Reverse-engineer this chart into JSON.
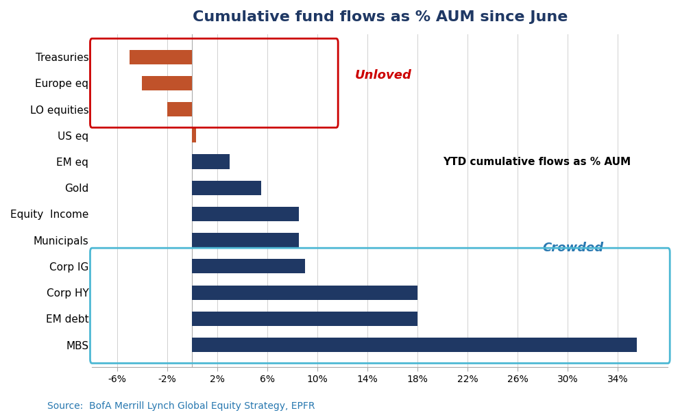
{
  "title": "Cumulative fund flows as % AUM since June",
  "title_color": "#1f3864",
  "categories": [
    "MBS",
    "EM debt",
    "Corp HY",
    "Corp IG",
    "Municipals",
    "Equity  Income",
    "Gold",
    "EM eq",
    "US eq",
    "LO equities",
    "Europe eq",
    "Treasuries"
  ],
  "values": [
    35.5,
    18.0,
    18.0,
    9.0,
    8.5,
    8.5,
    5.5,
    3.0,
    0.3,
    -2.0,
    -4.0,
    -5.0
  ],
  "bar_colors": [
    "#1f3864",
    "#1f3864",
    "#1f3864",
    "#1f3864",
    "#1f3864",
    "#1f3864",
    "#1f3864",
    "#1f3864",
    "#c0522a",
    "#c0522a",
    "#c0522a",
    "#c0522a"
  ],
  "xlim": [
    -8,
    38
  ],
  "xticks": [
    -6,
    -2,
    2,
    6,
    10,
    14,
    18,
    22,
    26,
    30,
    34
  ],
  "xtick_labels": [
    "-6%",
    "-2%",
    "2%",
    "6%",
    "10%",
    "14%",
    "18%",
    "22%",
    "26%",
    "30%",
    "34%"
  ],
  "source_text": "Source:  BofA Merrill Lynch Global Equity Strategy, EPFR",
  "source_color": "#2878b0",
  "annotation_unloved": "Unloved",
  "annotation_unloved_color": "#cc0000",
  "annotation_crowded": "Crowded",
  "annotation_crowded_color": "#2878b0",
  "annotation_ytd": "YTD cumulative flows as % AUM",
  "annotation_ytd_color": "#000000",
  "red_box_categories": [
    "LO equities",
    "Europe eq",
    "Treasuries"
  ],
  "blue_box_categories": [
    "MBS",
    "EM debt",
    "Corp HY",
    "Corp IG"
  ],
  "background_color": "#ffffff",
  "red_box_color": "#cc0000",
  "blue_box_color": "#4db8d4"
}
